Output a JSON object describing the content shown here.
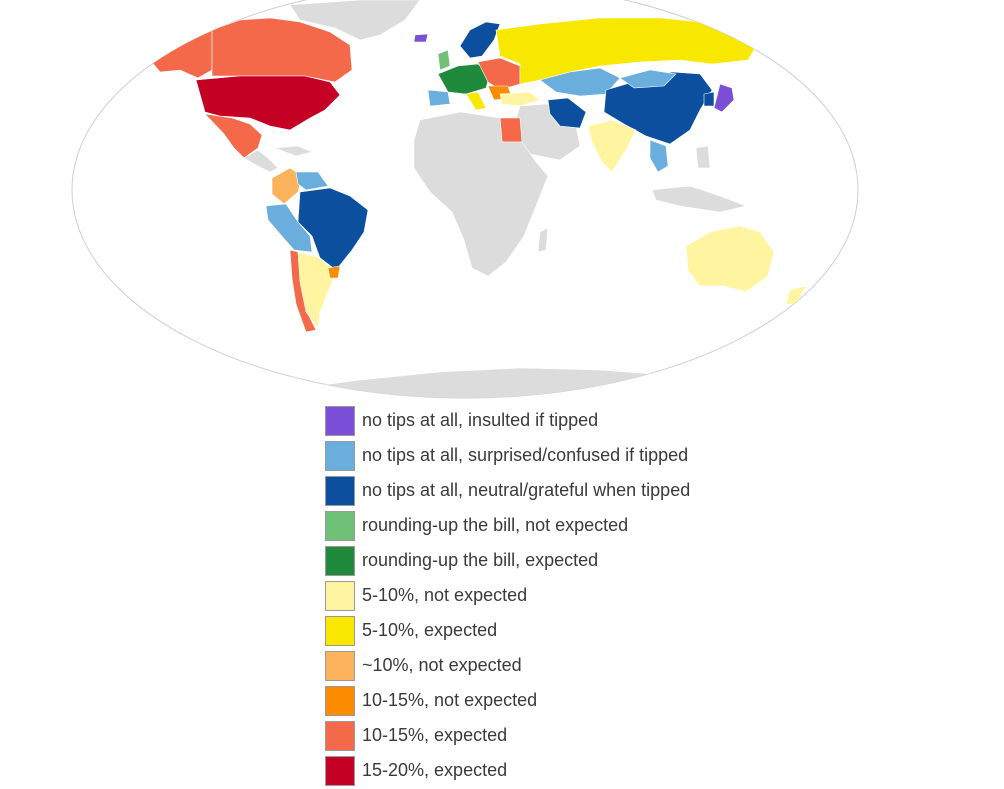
{
  "colors": {
    "ocean": "#ffffff",
    "no_data_land": "#dcdcdc",
    "outline": "#cfcfcf"
  },
  "legend": {
    "items": [
      {
        "key": "insulted",
        "label": "no tips at all, insulted if tipped",
        "color": "#7b4fd8"
      },
      {
        "key": "surprised",
        "label": "no tips at all, surprised/confused if tipped",
        "color": "#6aaede"
      },
      {
        "key": "neutral",
        "label": "no tips at all, neutral/grateful when tipped",
        "color": "#0b4f9e"
      },
      {
        "key": "round_not",
        "label": "rounding-up the bill, not expected",
        "color": "#6fc178"
      },
      {
        "key": "round_exp",
        "label": "rounding-up the bill, expected",
        "color": "#1f8a3b"
      },
      {
        "key": "p5_not",
        "label": "5-10%, not expected",
        "color": "#fff5a0"
      },
      {
        "key": "p5_exp",
        "label": "5-10%, expected",
        "color": "#f8e800"
      },
      {
        "key": "p10_not",
        "label": "~10%, not expected",
        "color": "#fbb35c"
      },
      {
        "key": "p10_15_not",
        "label": "10-15%, not expected",
        "color": "#fb8c00"
      },
      {
        "key": "p10_15_exp",
        "label": "10-15%, expected",
        "color": "#f4694a"
      },
      {
        "key": "p15_20_exp",
        "label": "15-20%, expected",
        "color": "#c50025"
      }
    ]
  }
}
